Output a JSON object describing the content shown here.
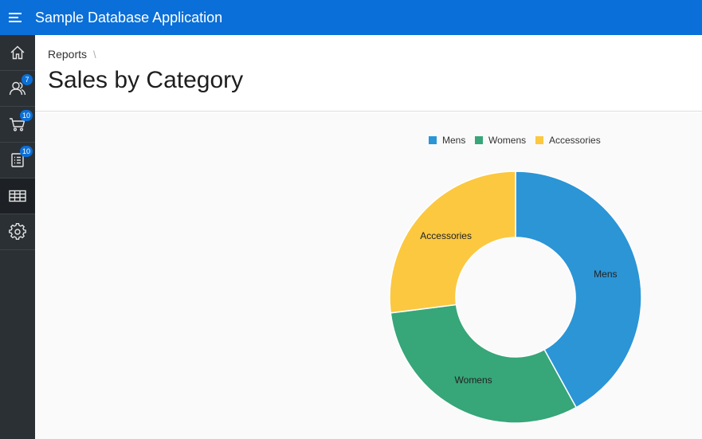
{
  "app": {
    "title": "Sample Database Application"
  },
  "sidebar": {
    "items": [
      {
        "name": "nav-home",
        "icon": "home-icon",
        "badge": ""
      },
      {
        "name": "nav-customers",
        "icon": "users-icon",
        "badge": "7"
      },
      {
        "name": "nav-orders",
        "icon": "cart-icon",
        "badge": "10"
      },
      {
        "name": "nav-products",
        "icon": "list-icon",
        "badge": "10"
      },
      {
        "name": "nav-reports",
        "icon": "table-icon",
        "badge": "",
        "active": true
      },
      {
        "name": "nav-administration",
        "icon": "gear-icon",
        "badge": ""
      }
    ]
  },
  "breadcrumb": {
    "items": [
      "Reports"
    ],
    "separator": "\\"
  },
  "page": {
    "title": "Sales by Category"
  },
  "colors": {
    "header": "#0a6fd8",
    "sidebar": "#2b3035",
    "mens": "#2b95d6",
    "womens": "#37a678",
    "accessories": "#fbc840"
  },
  "chart_data": {
    "type": "pie",
    "donut": true,
    "categories": [
      "Mens",
      "Womens",
      "Accessories"
    ],
    "values": [
      42,
      31,
      27
    ],
    "legend": [
      "Mens",
      "Womens",
      "Accessories"
    ],
    "legend_position": "top",
    "title": ""
  }
}
